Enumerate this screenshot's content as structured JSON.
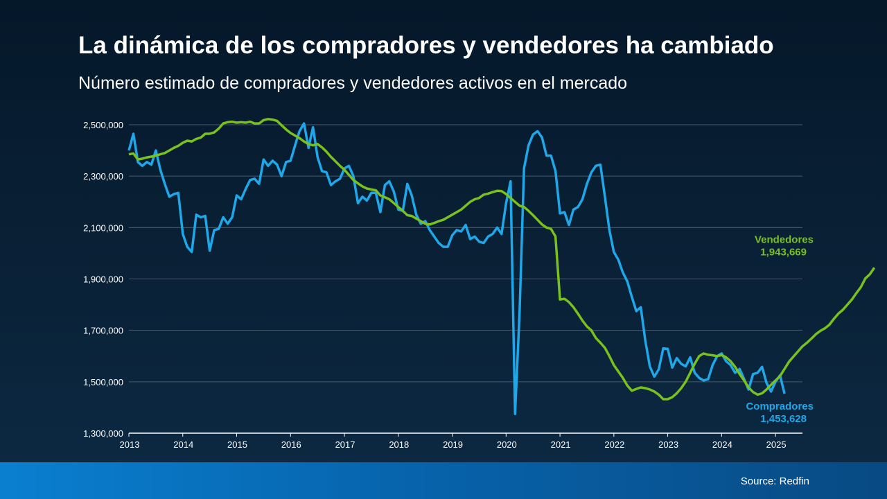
{
  "title": "La dinámica de los compradores y vendedores ha cambiado",
  "subtitle": "Número estimado de compradores y vendedores activos en el mercado",
  "source": "Source: Redfin",
  "colors": {
    "vendedores": "#79c11e",
    "compradores": "#1ea7e9",
    "grid": "#4a5c6e",
    "axis": "#ffffff"
  },
  "chart_data": {
    "type": "line",
    "title": "La dinámica de los compradores y vendedores ha cambiado",
    "subtitle": "Número estimado de compradores y vendedores activos en el mercado",
    "xlabel": "",
    "ylabel": "",
    "xlim": [
      2013.0,
      2025.5
    ],
    "ylim": [
      1300000,
      2500000
    ],
    "grid": "horizontal",
    "x_ticks": [
      2013,
      2014,
      2015,
      2016,
      2017,
      2018,
      2019,
      2020,
      2021,
      2022,
      2023,
      2024,
      2025
    ],
    "y_ticks": [
      1300000,
      1500000,
      1700000,
      1900000,
      2100000,
      2300000,
      2500000
    ],
    "y_tick_labels": [
      "1,300,000",
      "1,500,000",
      "1,700,000",
      "1,900,000",
      "2,100,000",
      "2,300,000",
      "2,500,000"
    ],
    "series": [
      {
        "name": "Vendedores",
        "end_label_name": "Vendedores",
        "end_label_value": "1,943,669",
        "x_start": 2013.0,
        "x_step": 0.0833333,
        "values": [
          2385000,
          2388000,
          2365000,
          2368000,
          2373000,
          2376000,
          2380000,
          2385000,
          2390000,
          2400000,
          2410000,
          2418000,
          2430000,
          2438000,
          2435000,
          2445000,
          2450000,
          2465000,
          2465000,
          2470000,
          2485000,
          2505000,
          2510000,
          2512000,
          2508000,
          2510000,
          2508000,
          2512000,
          2505000,
          2505000,
          2518000,
          2522000,
          2520000,
          2515000,
          2498000,
          2482000,
          2468000,
          2458000,
          2448000,
          2435000,
          2425000,
          2420000,
          2425000,
          2412000,
          2395000,
          2375000,
          2358000,
          2340000,
          2325000,
          2305000,
          2285000,
          2272000,
          2260000,
          2252000,
          2248000,
          2245000,
          2225000,
          2218000,
          2210000,
          2195000,
          2180000,
          2165000,
          2148000,
          2145000,
          2135000,
          2125000,
          2115000,
          2112000,
          2118000,
          2125000,
          2130000,
          2140000,
          2150000,
          2160000,
          2170000,
          2185000,
          2200000,
          2210000,
          2215000,
          2228000,
          2232000,
          2238000,
          2243000,
          2242000,
          2230000,
          2215000,
          2200000,
          2185000,
          2180000,
          2165000,
          2148000,
          2130000,
          2112000,
          2100000,
          2095000,
          2065000,
          1820000,
          1823000,
          1810000,
          1790000,
          1765000,
          1738000,
          1715000,
          1700000,
          1670000,
          1652000,
          1632000,
          1600000,
          1565000,
          1540000,
          1515000,
          1485000,
          1465000,
          1472000,
          1478000,
          1475000,
          1470000,
          1462000,
          1450000,
          1432000,
          1432000,
          1440000,
          1455000,
          1475000,
          1500000,
          1535000,
          1570000,
          1600000,
          1610000,
          1605000,
          1603000,
          1600000,
          1604000,
          1595000,
          1580000,
          1558000,
          1530000,
          1505000,
          1478000,
          1460000,
          1450000,
          1455000,
          1470000,
          1488000,
          1505000,
          1522000,
          1550000,
          1578000,
          1598000,
          1618000,
          1638000,
          1652000,
          1668000,
          1685000,
          1698000,
          1708000,
          1722000,
          1745000,
          1765000,
          1780000,
          1800000,
          1820000,
          1845000,
          1868000,
          1902000,
          1918000,
          1943669
        ]
      },
      {
        "name": "Compradores",
        "end_label_name": "Compradores",
        "end_label_value": "1,453,628",
        "x_start": 2013.0,
        "x_step": 0.0833333,
        "values": [
          2400000,
          2465000,
          2355000,
          2340000,
          2355000,
          2345000,
          2400000,
          2325000,
          2270000,
          2220000,
          2230000,
          2235000,
          2075000,
          2025000,
          2005000,
          2150000,
          2140000,
          2145000,
          2010000,
          2090000,
          2095000,
          2140000,
          2115000,
          2140000,
          2225000,
          2210000,
          2250000,
          2285000,
          2290000,
          2270000,
          2365000,
          2340000,
          2360000,
          2345000,
          2300000,
          2355000,
          2360000,
          2420000,
          2475000,
          2505000,
          2410000,
          2490000,
          2375000,
          2320000,
          2315000,
          2265000,
          2280000,
          2290000,
          2330000,
          2340000,
          2300000,
          2195000,
          2220000,
          2205000,
          2235000,
          2235000,
          2160000,
          2265000,
          2280000,
          2240000,
          2170000,
          2165000,
          2270000,
          2225000,
          2150000,
          2115000,
          2125000,
          2090000,
          2065000,
          2040000,
          2025000,
          2025000,
          2070000,
          2090000,
          2085000,
          2110000,
          2055000,
          2065000,
          2045000,
          2040000,
          2065000,
          2075000,
          2100000,
          2075000,
          2195000,
          2280000,
          1375000,
          1770000,
          2330000,
          2420000,
          2462000,
          2475000,
          2450000,
          2380000,
          2380000,
          2320000,
          2155000,
          2160000,
          2110000,
          2170000,
          2180000,
          2210000,
          2270000,
          2315000,
          2340000,
          2345000,
          2220000,
          2090000,
          2005000,
          1975000,
          1925000,
          1890000,
          1830000,
          1775000,
          1790000,
          1660000,
          1560000,
          1520000,
          1548000,
          1630000,
          1628000,
          1555000,
          1592000,
          1570000,
          1560000,
          1595000,
          1535000,
          1515000,
          1505000,
          1510000,
          1565000,
          1600000,
          1610000,
          1580000,
          1565000,
          1535000,
          1550000,
          1510000,
          1470000,
          1530000,
          1535000,
          1558000,
          1495000,
          1462000,
          1500000,
          1525000,
          1453628
        ]
      }
    ]
  }
}
